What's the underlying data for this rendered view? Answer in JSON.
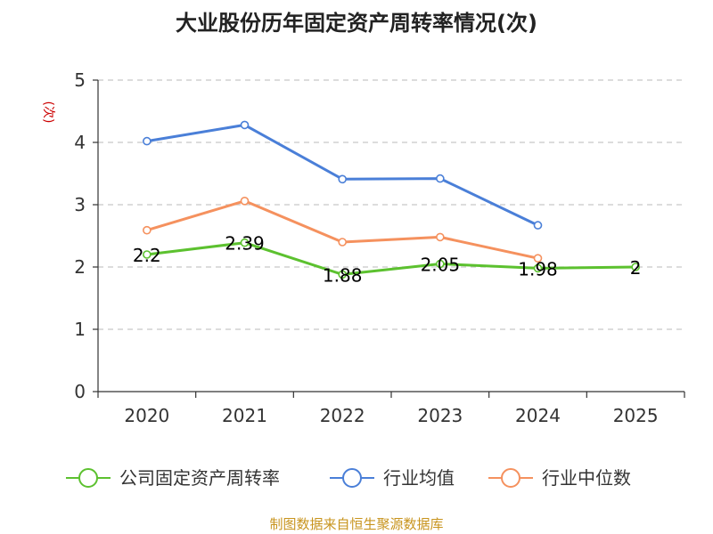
{
  "chart_data": {
    "type": "line",
    "title": "大业股份历年固定资产周转率情况(次)",
    "ylabel": "(次)",
    "categories": [
      "2020",
      "2021",
      "2022",
      "2023",
      "2024",
      "2025"
    ],
    "ylim": [
      0,
      5
    ],
    "yticks": [
      "0",
      "1",
      "2",
      "3",
      "4",
      "5"
    ],
    "grid": true,
    "legend_position": "bottom",
    "series": [
      {
        "name": "公司固定资产周转率",
        "color": "#5cc12f",
        "values": [
          2.2,
          2.39,
          1.88,
          2.05,
          1.98,
          2.0
        ],
        "labels": [
          "2.2",
          "2.39",
          "1.88",
          "2.05",
          "1.98",
          "2"
        ]
      },
      {
        "name": "行业均值",
        "color": "#4a7fd8",
        "values": [
          4.02,
          4.28,
          3.41,
          3.42,
          2.67,
          null
        ]
      },
      {
        "name": "行业中位数",
        "color": "#f5915e",
        "values": [
          2.59,
          3.06,
          2.4,
          2.48,
          2.14,
          null
        ]
      }
    ]
  },
  "source": "制图数据来自恒生聚源数据库"
}
